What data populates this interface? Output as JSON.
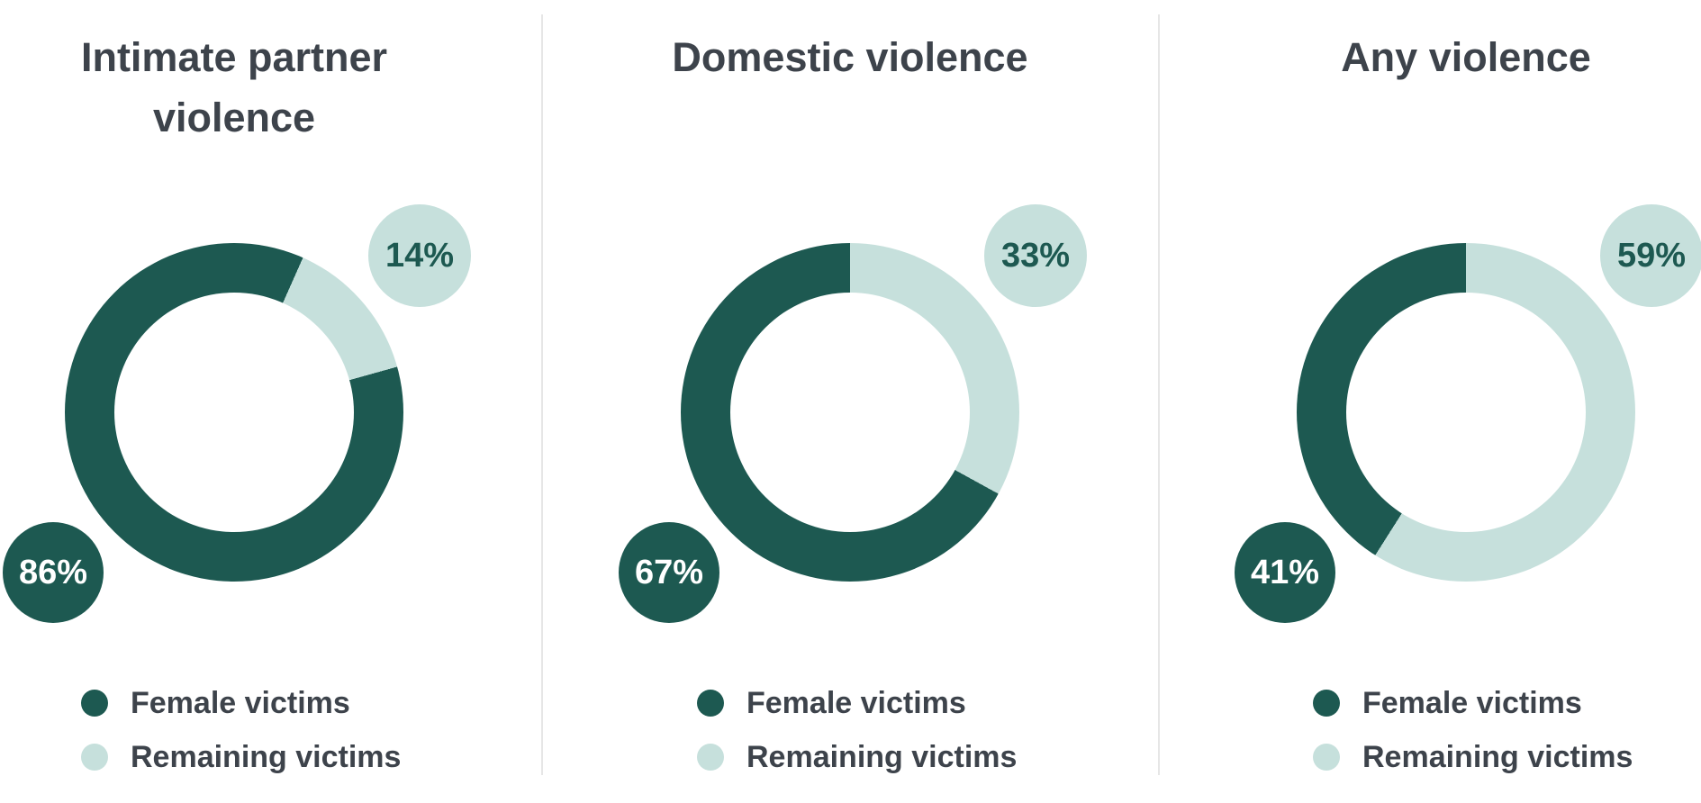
{
  "page": {
    "background": "#ffffff"
  },
  "colors": {
    "female": "#1d5951",
    "remaining": "#c6e0dc",
    "text": "#3d434b",
    "divider": "#e6e6e6",
    "dark_bubble_text": "#ffffff"
  },
  "legend": {
    "female_label": "Female victims",
    "remaining_label": "Remaining victims"
  },
  "panels": [
    {
      "title_lines": [
        "Intimate partner",
        "violence"
      ],
      "female_pct": "86%",
      "remaining_pct": "14%"
    },
    {
      "title_lines": [
        "Domestic violence"
      ],
      "female_pct": "67%",
      "remaining_pct": "33%"
    },
    {
      "title_lines": [
        "Any violence"
      ],
      "female_pct": "41%",
      "remaining_pct": "59%"
    }
  ],
  "chart_data": [
    {
      "type": "pie",
      "subtype": "donut",
      "title": "Intimate partner violence",
      "labels": [
        "Female victims",
        "Remaining victims"
      ],
      "values": [
        86,
        14
      ],
      "unit": "percent",
      "colors": [
        "#1d5951",
        "#c6e0dc"
      ],
      "remaining_start_deg": 24,
      "legend_position": "bottom-left",
      "data_labels": [
        "86%",
        "14%"
      ]
    },
    {
      "type": "pie",
      "subtype": "donut",
      "title": "Domestic violence",
      "labels": [
        "Female victims",
        "Remaining victims"
      ],
      "values": [
        67,
        33
      ],
      "unit": "percent",
      "colors": [
        "#1d5951",
        "#c6e0dc"
      ],
      "remaining_start_deg": 0,
      "legend_position": "bottom-left",
      "data_labels": [
        "67%",
        "33%"
      ]
    },
    {
      "type": "pie",
      "subtype": "donut",
      "title": "Any violence",
      "labels": [
        "Female victims",
        "Remaining victims"
      ],
      "values": [
        41,
        59
      ],
      "unit": "percent",
      "colors": [
        "#1d5951",
        "#c6e0dc"
      ],
      "remaining_start_deg": 0,
      "legend_position": "bottom-left",
      "data_labels": [
        "41%",
        "59%"
      ]
    }
  ]
}
